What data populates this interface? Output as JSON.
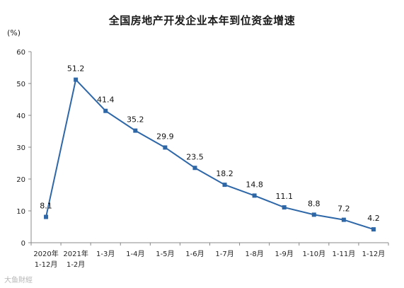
{
  "watermark": "大鱼財經",
  "chart_data": {
    "type": "line",
    "title": "全国房地产开发企业本年到位资金增速",
    "unit": "(%)",
    "ylim": [
      0,
      60
    ],
    "yticks": [
      0,
      10,
      20,
      30,
      40,
      50,
      60
    ],
    "categories": [
      [
        "2020年",
        "1-12月"
      ],
      [
        "2021年",
        "1-2月"
      ],
      [
        "1-3月"
      ],
      [
        "1-4月"
      ],
      [
        "1-5月"
      ],
      [
        "1-6月"
      ],
      [
        "1-7月"
      ],
      [
        "1-8月"
      ],
      [
        "1-9月"
      ],
      [
        "1-10月"
      ],
      [
        "1-11月"
      ],
      [
        "1-12月"
      ]
    ],
    "series": [
      {
        "color": "#2e67a8",
        "values": [
          8.1,
          51.2,
          41.4,
          35.2,
          29.9,
          23.5,
          18.2,
          14.8,
          11.1,
          8.8,
          7.2,
          4.2
        ],
        "labels": [
          "8.1",
          "51.2",
          "41.4",
          "35.2",
          "29.9",
          "23.5",
          "18.2",
          "14.8",
          "11.1",
          "8.8",
          "7.2",
          "4.2"
        ]
      }
    ],
    "grid": false,
    "legend": "none"
  }
}
